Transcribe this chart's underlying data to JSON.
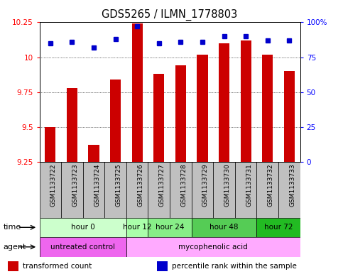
{
  "title": "GDS5265 / ILMN_1778803",
  "samples": [
    "GSM1133722",
    "GSM1133723",
    "GSM1133724",
    "GSM1133725",
    "GSM1133726",
    "GSM1133727",
    "GSM1133728",
    "GSM1133729",
    "GSM1133730",
    "GSM1133731",
    "GSM1133732",
    "GSM1133733"
  ],
  "bar_values": [
    9.5,
    9.78,
    9.37,
    9.84,
    10.24,
    9.88,
    9.94,
    10.02,
    10.1,
    10.12,
    10.02,
    9.9
  ],
  "percentile_values": [
    85,
    86,
    82,
    88,
    97,
    85,
    86,
    86,
    90,
    90,
    87,
    87
  ],
  "bar_bottom": 9.25,
  "ylim_left": [
    9.25,
    10.25
  ],
  "ylim_right": [
    0,
    100
  ],
  "yticks_left": [
    9.25,
    9.5,
    9.75,
    10.0,
    10.25
  ],
  "yticks_right": [
    0,
    25,
    50,
    75,
    100
  ],
  "ytick_labels_left": [
    "9.25",
    "9.5",
    "9.75",
    "10",
    "10.25"
  ],
  "ytick_labels_right": [
    "0",
    "25",
    "50",
    "75",
    "100%"
  ],
  "bar_color": "#cc0000",
  "percentile_color": "#0000cc",
  "grid_color": "#000000",
  "time_groups": [
    {
      "label": "hour 0",
      "start": 0,
      "end": 4,
      "color": "#ccffcc"
    },
    {
      "label": "hour 12",
      "start": 4,
      "end": 5,
      "color": "#aaffaa"
    },
    {
      "label": "hour 24",
      "start": 5,
      "end": 7,
      "color": "#88ee88"
    },
    {
      "label": "hour 48",
      "start": 7,
      "end": 10,
      "color": "#55cc55"
    },
    {
      "label": "hour 72",
      "start": 10,
      "end": 12,
      "color": "#22bb22"
    }
  ],
  "agent_groups": [
    {
      "label": "untreated control",
      "start": 0,
      "end": 4,
      "color": "#ee66ee"
    },
    {
      "label": "mycophenolic acid",
      "start": 4,
      "end": 12,
      "color": "#ffaaff"
    }
  ],
  "legend_items": [
    {
      "label": "transformed count",
      "color": "#cc0000"
    },
    {
      "label": "percentile rank within the sample",
      "color": "#0000cc"
    }
  ],
  "xaxis_bg": "#c0c0c0",
  "legend_fontsize": 7.5,
  "title_fontsize": 10.5,
  "tick_fontsize": 7.5,
  "sample_fontsize": 6.5
}
